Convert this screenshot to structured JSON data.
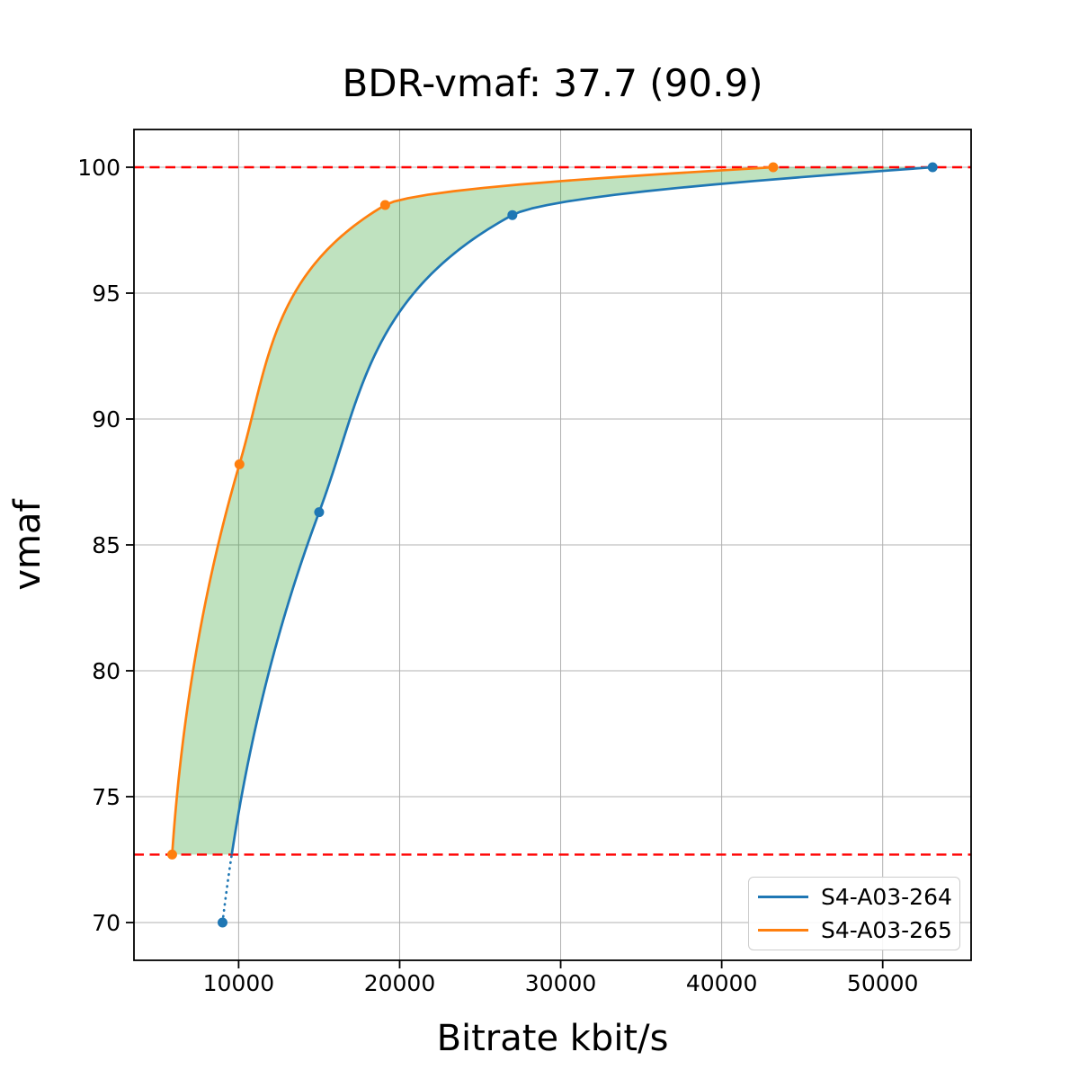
{
  "figure": {
    "title": "BDR-vmaf: 37.7 (90.9)"
  },
  "chart_data": {
    "type": "line",
    "title": "BDR-vmaf: 37.7 (90.9)",
    "xlabel": "Bitrate kbit/s",
    "ylabel": "vmaf",
    "xlim": [
      3500,
      55490
    ],
    "ylim": [
      68.5,
      101.5
    ],
    "xticks": [
      {
        "value": 10000,
        "label": "10000"
      },
      {
        "value": 20000,
        "label": "20000"
      },
      {
        "value": 30000,
        "label": "30000"
      },
      {
        "value": 40000,
        "label": "40000"
      },
      {
        "value": 50000,
        "label": "50000"
      }
    ],
    "yticks": [
      {
        "value": 70,
        "label": "70"
      },
      {
        "value": 75,
        "label": "75"
      },
      {
        "value": 80,
        "label": "80"
      },
      {
        "value": 85,
        "label": "85"
      },
      {
        "value": 90,
        "label": "90"
      },
      {
        "value": 95,
        "label": "95"
      },
      {
        "value": 100,
        "label": "100"
      }
    ],
    "grid": true,
    "grid_color": "#b0b0b0",
    "series": [
      {
        "name": "S4-A03-264",
        "color": "#1f77b4",
        "marker": "circle",
        "points": [
          {
            "bitrate": 9000,
            "vmaf": 70.0
          },
          {
            "bitrate": 15000,
            "vmaf": 86.3
          },
          {
            "bitrate": 27000,
            "vmaf": 98.1
          },
          {
            "bitrate": 53100,
            "vmaf": 100.0
          }
        ]
      },
      {
        "name": "S4-A03-265",
        "color": "#ff7f0e",
        "marker": "circle",
        "points": [
          {
            "bitrate": 5870,
            "vmaf": 72.7
          },
          {
            "bitrate": 10050,
            "vmaf": 88.2
          },
          {
            "bitrate": 19100,
            "vmaf": 98.5
          },
          {
            "bitrate": 43200,
            "vmaf": 100.0
          }
        ]
      }
    ],
    "overlap_region": {
      "vmaf_low": 72.7,
      "vmaf_high": 100.0,
      "line_color": "#ff0000",
      "line_style": "dashed",
      "fill_color": "#2ca02c",
      "fill_opacity": 0.3
    },
    "legend": {
      "position": "lower right",
      "entries": [
        "S4-A03-264",
        "S4-A03-265"
      ]
    }
  }
}
